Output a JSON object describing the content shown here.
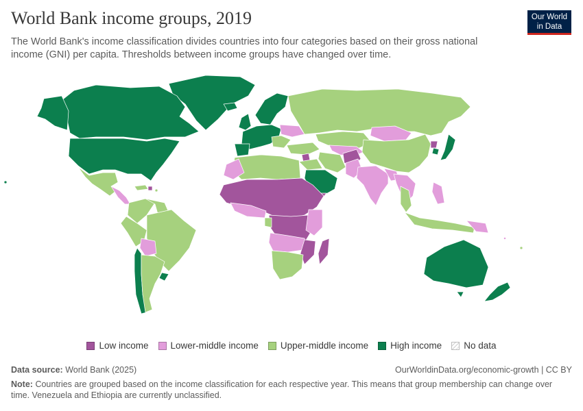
{
  "header": {
    "title": "World Bank income groups, 2019",
    "subtitle": "The World Bank's income classification divides countries into four categories based on their gross national income (GNI) per capita. Thresholds between income groups have changed over time."
  },
  "logo": {
    "line1": "Our World",
    "line2": "in Data"
  },
  "legend": {
    "items": [
      {
        "label": "Low income",
        "color": "#a2559c"
      },
      {
        "label": "Lower-middle income",
        "color": "#e29ddb"
      },
      {
        "label": "Upper-middle income",
        "color": "#a6d17e"
      },
      {
        "label": "High income",
        "color": "#0c7f4e"
      },
      {
        "label": "No data",
        "color": "hatched"
      }
    ]
  },
  "footer": {
    "source_label": "Data source:",
    "source_text": "World Bank (2025)",
    "url": "OurWorldinData.org/economic-growth | CC BY",
    "note_label": "Note:",
    "note_text": "Countries are grouped based on the income classification for each respective year. This means that group membership can change over time. Venezuela and Ethiopia are currently unclassified."
  },
  "colors": {
    "ocean": "#ffffff",
    "border": "#ffffff",
    "brand": "#002147",
    "brand_accent": "#ce261e"
  }
}
